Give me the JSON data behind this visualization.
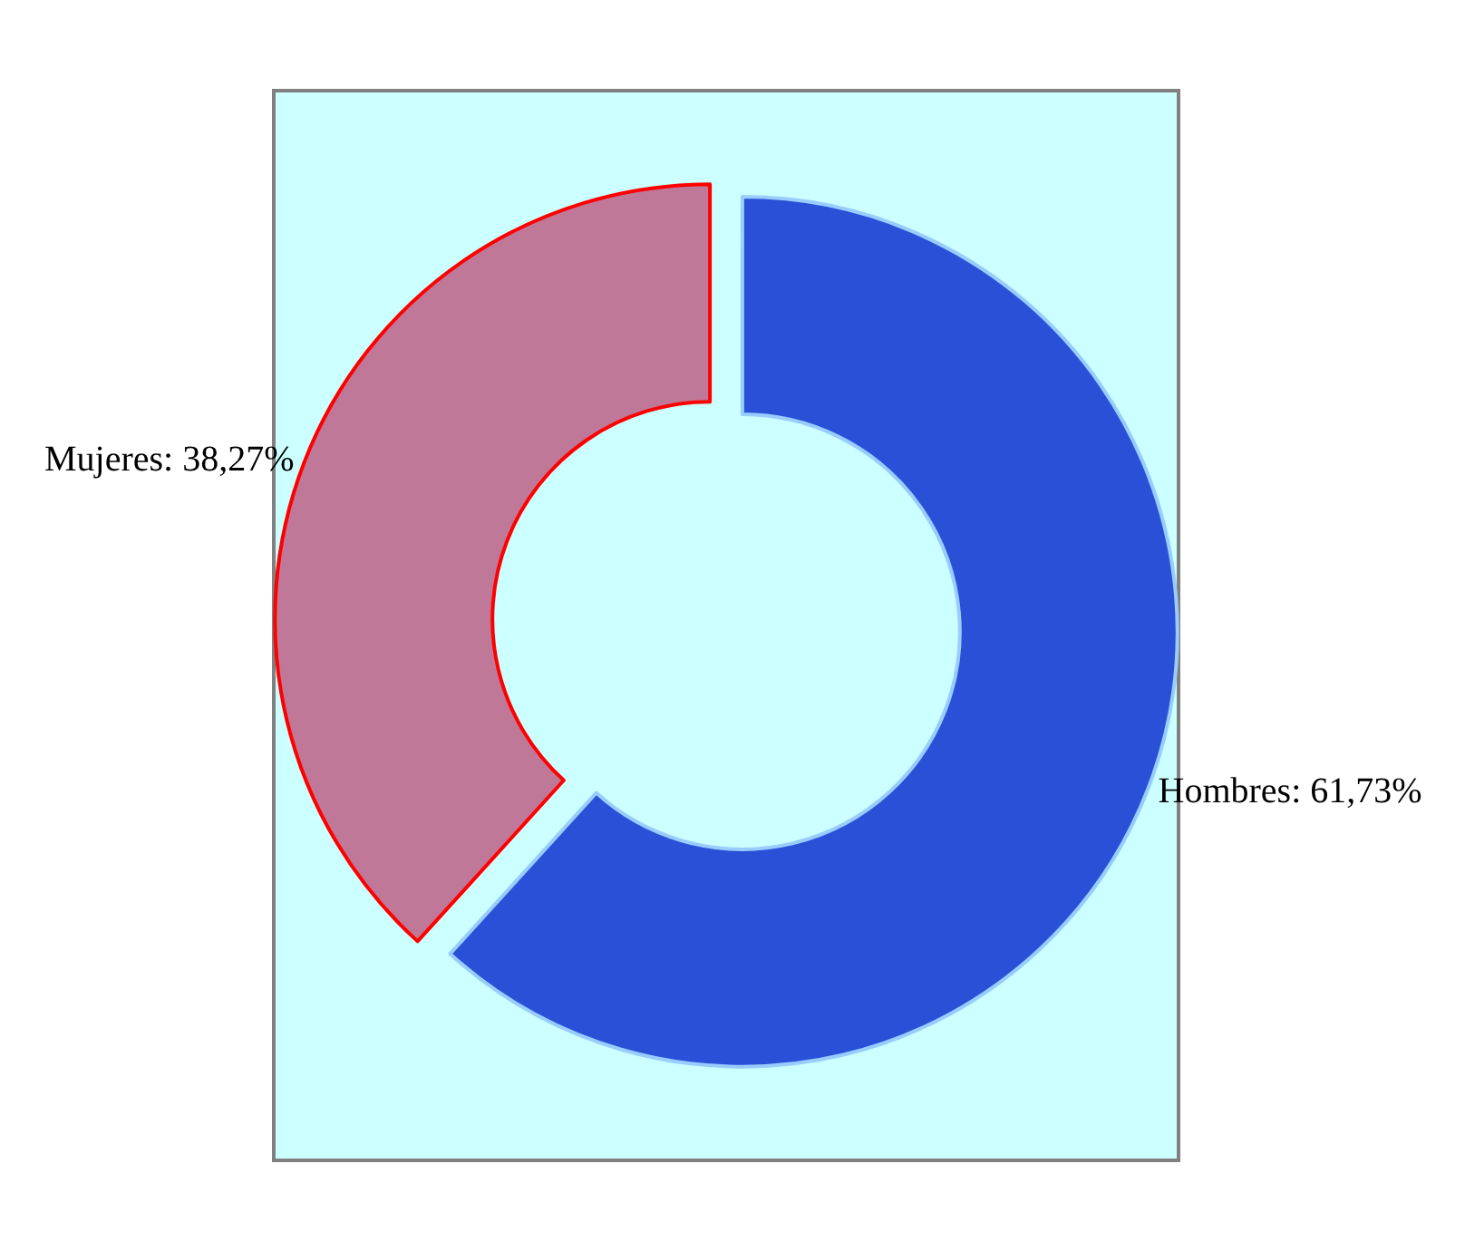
{
  "chart_data": {
    "type": "donut",
    "categories": [
      "Hombres",
      "Mujeres"
    ],
    "values": [
      61.73,
      38.27
    ],
    "colors": [
      "#2a50d8",
      "#c07898"
    ],
    "value_labels": [
      "61,73%",
      "38,27%"
    ],
    "legend": false
  }
}
